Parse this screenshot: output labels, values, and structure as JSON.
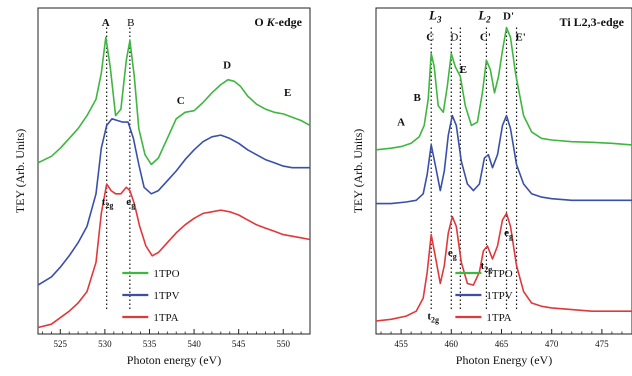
{
  "chart_data": [
    {
      "type": "line",
      "title": "O K-edge",
      "title_parts": [
        "O ",
        "K",
        "-edge"
      ],
      "xlabel": "Photon energy (eV)",
      "ylabel": "TEY (Arb. Units)",
      "xlim": [
        522.5,
        553
      ],
      "xticks": [
        525,
        530,
        535,
        540,
        545,
        550
      ],
      "ylim": [
        0,
        1
      ],
      "grid": false,
      "legend": {
        "position": "bottom-center",
        "entries": [
          "1TPO",
          "1TPV",
          "1TPA"
        ]
      },
      "series": [
        {
          "name": "1TPO",
          "color": "#3fb63f",
          "style": "line",
          "points": [
            [
              522.5,
              0.525
            ],
            [
              524,
              0.545
            ],
            [
              525,
              0.57
            ],
            [
              526,
              0.6
            ],
            [
              527,
              0.63
            ],
            [
              528,
              0.67
            ],
            [
              529,
              0.72
            ],
            [
              529.6,
              0.8
            ],
            [
              530.1,
              0.91
            ],
            [
              530.6,
              0.82
            ],
            [
              531.2,
              0.67
            ],
            [
              531.8,
              0.69
            ],
            [
              532.4,
              0.84
            ],
            [
              532.8,
              0.9
            ],
            [
              533.3,
              0.79
            ],
            [
              533.8,
              0.63
            ],
            [
              534.5,
              0.55
            ],
            [
              535.2,
              0.52
            ],
            [
              536,
              0.54
            ],
            [
              537,
              0.6
            ],
            [
              538,
              0.66
            ],
            [
              539,
              0.68
            ],
            [
              540,
              0.685
            ],
            [
              541,
              0.71
            ],
            [
              542,
              0.74
            ],
            [
              543,
              0.765
            ],
            [
              543.8,
              0.78
            ],
            [
              544.5,
              0.775
            ],
            [
              545.2,
              0.76
            ],
            [
              546,
              0.73
            ],
            [
              547,
              0.705
            ],
            [
              548,
              0.69
            ],
            [
              549,
              0.68
            ],
            [
              550,
              0.675
            ],
            [
              551,
              0.665
            ],
            [
              552,
              0.655
            ],
            [
              553,
              0.64
            ]
          ]
        },
        {
          "name": "1TPV",
          "color": "#3a50a8",
          "style": "line",
          "points": [
            [
              522.5,
              0.15
            ],
            [
              524,
              0.175
            ],
            [
              525,
              0.205
            ],
            [
              526,
              0.24
            ],
            [
              527,
              0.28
            ],
            [
              528,
              0.33
            ],
            [
              529,
              0.43
            ],
            [
              529.6,
              0.57
            ],
            [
              530.2,
              0.64
            ],
            [
              530.8,
              0.66
            ],
            [
              531.4,
              0.655
            ],
            [
              532,
              0.65
            ],
            [
              532.6,
              0.65
            ],
            [
              533.2,
              0.6
            ],
            [
              533.8,
              0.52
            ],
            [
              534.4,
              0.45
            ],
            [
              535.2,
              0.43
            ],
            [
              536,
              0.44
            ],
            [
              537,
              0.47
            ],
            [
              538,
              0.5
            ],
            [
              539,
              0.535
            ],
            [
              540,
              0.565
            ],
            [
              541,
              0.59
            ],
            [
              542,
              0.605
            ],
            [
              543,
              0.61
            ],
            [
              544,
              0.6
            ],
            [
              545,
              0.585
            ],
            [
              546,
              0.565
            ],
            [
              547,
              0.55
            ],
            [
              548,
              0.535
            ],
            [
              549,
              0.525
            ],
            [
              550,
              0.515
            ],
            [
              551,
              0.51
            ],
            [
              552,
              0.51
            ],
            [
              553,
              0.51
            ]
          ]
        },
        {
          "name": "1TPA",
          "color": "#e0383b",
          "style": "line",
          "points": [
            [
              522.5,
              0.02
            ],
            [
              524,
              0.03
            ],
            [
              525,
              0.05
            ],
            [
              526,
              0.07
            ],
            [
              527,
              0.095
            ],
            [
              528,
              0.13
            ],
            [
              529,
              0.22
            ],
            [
              529.6,
              0.37
            ],
            [
              530.2,
              0.46
            ],
            [
              530.7,
              0.44
            ],
            [
              531.2,
              0.43
            ],
            [
              531.8,
              0.43
            ],
            [
              532.4,
              0.45
            ],
            [
              532.8,
              0.44
            ],
            [
              533.3,
              0.4
            ],
            [
              533.9,
              0.33
            ],
            [
              534.6,
              0.27
            ],
            [
              535.3,
              0.24
            ],
            [
              536,
              0.25
            ],
            [
              537,
              0.28
            ],
            [
              538,
              0.31
            ],
            [
              539,
              0.335
            ],
            [
              540,
              0.355
            ],
            [
              541,
              0.37
            ],
            [
              542,
              0.375
            ],
            [
              543,
              0.38
            ],
            [
              544,
              0.375
            ],
            [
              545,
              0.365
            ],
            [
              546,
              0.35
            ],
            [
              547,
              0.335
            ],
            [
              548,
              0.325
            ],
            [
              549,
              0.315
            ],
            [
              550,
              0.305
            ],
            [
              551,
              0.3
            ],
            [
              552,
              0.295
            ],
            [
              553,
              0.29
            ]
          ]
        }
      ],
      "dashed_lines_x": [
        530.2,
        532.8
      ],
      "annotations": [
        {
          "text": "A",
          "x": 530.1,
          "y": 0.945,
          "bold": true
        },
        {
          "text": "B",
          "x": 532.9,
          "y": 0.945,
          "bold": false
        },
        {
          "text": "C",
          "x": 538.5,
          "y": 0.705,
          "bold": true
        },
        {
          "text": "D",
          "x": 543.7,
          "y": 0.815,
          "bold": true
        },
        {
          "text": "E",
          "x": 550.5,
          "y": 0.73,
          "bold": true
        },
        {
          "text": "t2g",
          "x": 530.3,
          "y": 0.395,
          "bold": true
        },
        {
          "text": "eg",
          "x": 532.9,
          "y": 0.395,
          "bold": true
        }
      ]
    },
    {
      "type": "line",
      "title": "Ti L2,3-edge",
      "xlabel": "Photon Energy (eV)",
      "ylabel": "TEY (Arb. Units)",
      "xlim": [
        452.5,
        478
      ],
      "xticks": [
        455,
        460,
        465,
        470,
        475
      ],
      "ylim": [
        0,
        1
      ],
      "grid": false,
      "legend": {
        "position": "bottom-center",
        "entries": [
          "1TPO",
          "1TPV",
          "1TPA"
        ]
      },
      "series": [
        {
          "name": "1TPO",
          "color": "#3fb63f",
          "style": "line",
          "points": [
            [
              452.5,
              0.565
            ],
            [
              454,
              0.57
            ],
            [
              455,
              0.575
            ],
            [
              456,
              0.585
            ],
            [
              456.8,
              0.605
            ],
            [
              457.3,
              0.64
            ],
            [
              457.7,
              0.72
            ],
            [
              458.0,
              0.86
            ],
            [
              458.3,
              0.82
            ],
            [
              458.7,
              0.7
            ],
            [
              459.2,
              0.68
            ],
            [
              459.6,
              0.76
            ],
            [
              460.0,
              0.86
            ],
            [
              460.4,
              0.82
            ],
            [
              460.9,
              0.79
            ],
            [
              461.4,
              0.7
            ],
            [
              462,
              0.64
            ],
            [
              462.6,
              0.65
            ],
            [
              463.1,
              0.74
            ],
            [
              463.5,
              0.84
            ],
            [
              463.9,
              0.81
            ],
            [
              464.3,
              0.74
            ],
            [
              464.7,
              0.79
            ],
            [
              465.1,
              0.87
            ],
            [
              465.5,
              0.94
            ],
            [
              465.9,
              0.91
            ],
            [
              466.4,
              0.8
            ],
            [
              467.2,
              0.67
            ],
            [
              468,
              0.62
            ],
            [
              469,
              0.6
            ],
            [
              470,
              0.595
            ],
            [
              472,
              0.59
            ],
            [
              474,
              0.588
            ],
            [
              476,
              0.585
            ],
            [
              478,
              0.58
            ]
          ]
        },
        {
          "name": "1TPV",
          "color": "#3a50a8",
          "style": "line",
          "points": [
            [
              452.5,
              0.4
            ],
            [
              454,
              0.4
            ],
            [
              455.5,
              0.405
            ],
            [
              456.5,
              0.41
            ],
            [
              457.2,
              0.43
            ],
            [
              457.6,
              0.49
            ],
            [
              458.0,
              0.58
            ],
            [
              458.4,
              0.52
            ],
            [
              458.9,
              0.44
            ],
            [
              459.3,
              0.5
            ],
            [
              459.7,
              0.61
            ],
            [
              460.1,
              0.67
            ],
            [
              460.5,
              0.64
            ],
            [
              461,
              0.53
            ],
            [
              461.6,
              0.46
            ],
            [
              462.2,
              0.44
            ],
            [
              462.8,
              0.46
            ],
            [
              463.3,
              0.54
            ],
            [
              463.7,
              0.55
            ],
            [
              464.1,
              0.51
            ],
            [
              464.6,
              0.55
            ],
            [
              465.1,
              0.64
            ],
            [
              465.5,
              0.67
            ],
            [
              465.9,
              0.63
            ],
            [
              466.5,
              0.52
            ],
            [
              467.2,
              0.46
            ],
            [
              468,
              0.43
            ],
            [
              469,
              0.42
            ],
            [
              470,
              0.415
            ],
            [
              472,
              0.41
            ],
            [
              474,
              0.41
            ],
            [
              476,
              0.41
            ],
            [
              478,
              0.41
            ]
          ]
        },
        {
          "name": "1TPA",
          "color": "#e0383b",
          "style": "line",
          "points": [
            [
              452.5,
              0.04
            ],
            [
              454,
              0.045
            ],
            [
              455.5,
              0.055
            ],
            [
              456.5,
              0.07
            ],
            [
              457.2,
              0.11
            ],
            [
              457.6,
              0.19
            ],
            [
              458.0,
              0.305
            ],
            [
              458.4,
              0.24
            ],
            [
              458.9,
              0.155
            ],
            [
              459.3,
              0.21
            ],
            [
              459.7,
              0.31
            ],
            [
              460.1,
              0.36
            ],
            [
              460.5,
              0.33
            ],
            [
              461,
              0.22
            ],
            [
              461.6,
              0.155
            ],
            [
              462.2,
              0.15
            ],
            [
              462.8,
              0.19
            ],
            [
              463.2,
              0.255
            ],
            [
              463.6,
              0.27
            ],
            [
              464.1,
              0.23
            ],
            [
              464.6,
              0.27
            ],
            [
              465.1,
              0.35
            ],
            [
              465.5,
              0.37
            ],
            [
              465.9,
              0.33
            ],
            [
              466.5,
              0.21
            ],
            [
              467.2,
              0.13
            ],
            [
              468,
              0.095
            ],
            [
              469,
              0.085
            ],
            [
              470,
              0.08
            ],
            [
              472,
              0.075
            ],
            [
              474,
              0.07
            ],
            [
              476,
              0.07
            ],
            [
              478,
              0.07
            ]
          ]
        }
      ],
      "dashed_lines_x": [
        458.0,
        460.0,
        460.9,
        463.5,
        465.5,
        466.5
      ],
      "annotations": [
        {
          "text": "A",
          "x": 455.0,
          "y": 0.64,
          "bold": true
        },
        {
          "text": "B",
          "x": 456.6,
          "y": 0.715,
          "bold": true
        },
        {
          "text": "C",
          "x": 457.9,
          "y": 0.9,
          "bold": true
        },
        {
          "text": "D",
          "x": 460.3,
          "y": 0.9,
          "bold": false
        },
        {
          "text": "E",
          "x": 461.2,
          "y": 0.8,
          "bold": true
        },
        {
          "text": "C'",
          "x": 463.4,
          "y": 0.9,
          "bold": true
        },
        {
          "text": "D'",
          "x": 465.7,
          "y": 0.965,
          "bold": true
        },
        {
          "text": "E'",
          "x": 466.9,
          "y": 0.9,
          "bold": true
        },
        {
          "text": "t2g",
          "x": 458.2,
          "y": 0.045,
          "bold": true
        },
        {
          "text": "eg",
          "x": 460.1,
          "y": 0.24,
          "bold": true
        },
        {
          "text": "t2g",
          "x": 463.5,
          "y": 0.2,
          "bold": true
        },
        {
          "text": "eg",
          "x": 465.7,
          "y": 0.3,
          "bold": true
        }
      ],
      "edge_labels": [
        {
          "text": "L3",
          "x": 458.4,
          "y": 0.965
        },
        {
          "text": "L2",
          "x": 463.3,
          "y": 0.965
        }
      ]
    }
  ]
}
